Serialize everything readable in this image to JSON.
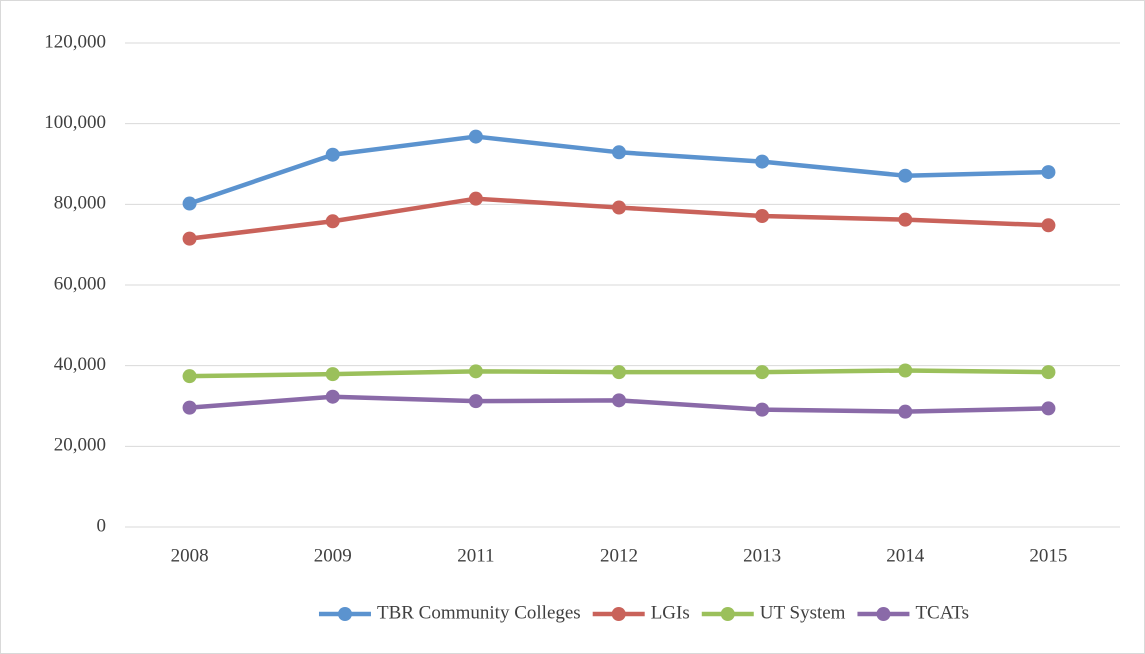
{
  "chart_data": {
    "type": "line",
    "categories": [
      "2008",
      "2009",
      "2011",
      "2012",
      "2013",
      "2014",
      "2015"
    ],
    "series": [
      {
        "name": "TBR Community Colleges",
        "color": "#5b93cf",
        "values": [
          80200,
          92300,
          96800,
          92900,
          90600,
          87100,
          88000
        ]
      },
      {
        "name": "LGIs",
        "color": "#c9625a",
        "values": [
          71500,
          75800,
          81400,
          79200,
          77100,
          76200,
          74800
        ]
      },
      {
        "name": "UT System",
        "color": "#9bc05b",
        "values": [
          37400,
          37900,
          38600,
          38400,
          38400,
          38800,
          38400
        ]
      },
      {
        "name": "TCATs",
        "color": "#8a6aa8",
        "values": [
          29600,
          32300,
          31200,
          31400,
          29100,
          28600,
          29400
        ]
      }
    ],
    "ylim": [
      0,
      120000
    ],
    "yticks": [
      0,
      {
        "value": 20000,
        "label": "20,000"
      },
      {
        "value": 40000,
        "label": "40,000"
      },
      {
        "value": 60000,
        "label": "60,000"
      },
      {
        "value": 80000,
        "label": "80,000"
      },
      {
        "value": 100000,
        "label": "100,000"
      },
      {
        "value": 120000,
        "label": "120,000"
      }
    ],
    "grid": true,
    "legend": "bottom"
  }
}
